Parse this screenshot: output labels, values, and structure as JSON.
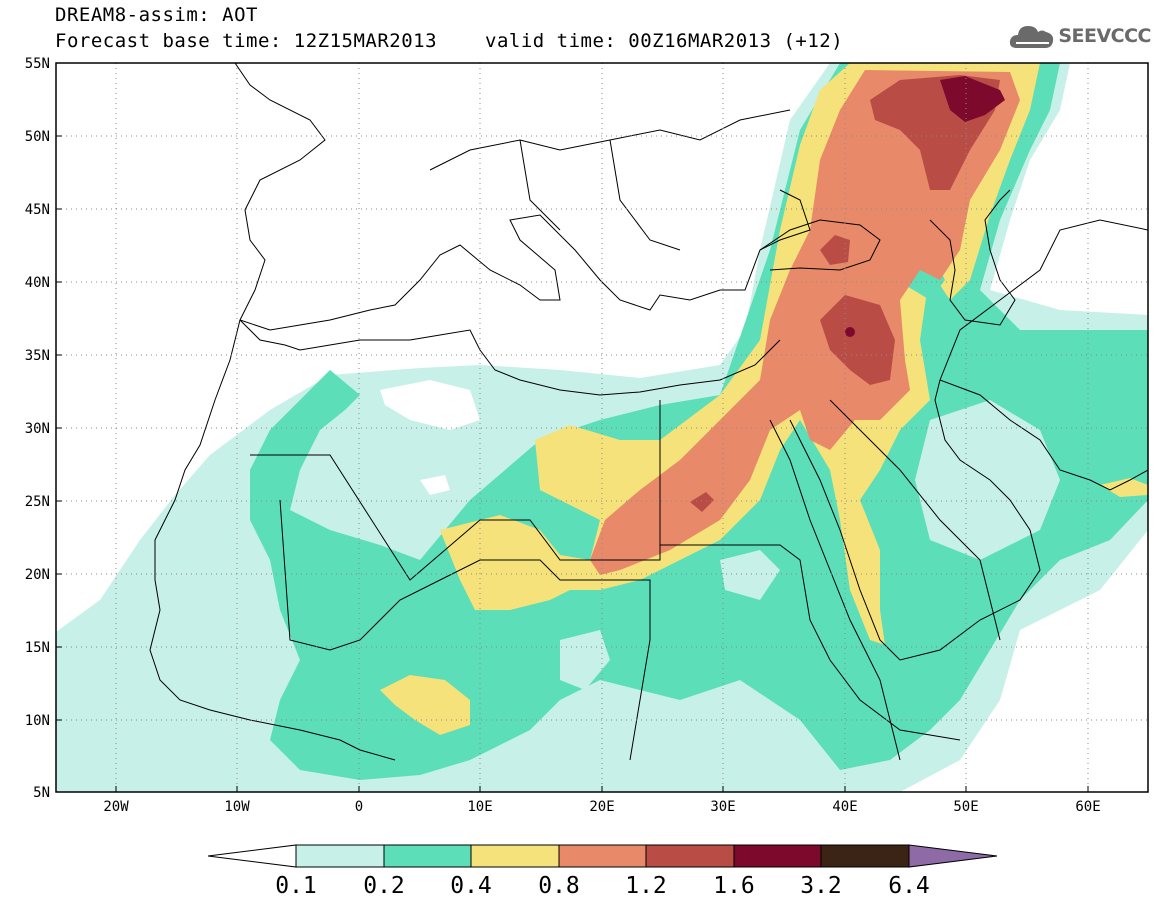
{
  "header": {
    "title": "DREAM8-assim: AOT",
    "base_time": "Forecast base time: 12Z15MAR2013",
    "valid_time": "valid time: 00Z16MAR2013 (+12)",
    "logo_text": "SEEVCCC",
    "logo_icon": "cloud-icon"
  },
  "map": {
    "lat_range": [
      5,
      55
    ],
    "lon_range": [
      -25,
      65
    ],
    "lat_labels": [
      "55N",
      "50N",
      "45N",
      "40N",
      "35N",
      "30N",
      "25N",
      "20N",
      "15N",
      "10N",
      "5N"
    ],
    "lon_labels": [
      "20W",
      "10W",
      "0",
      "10E",
      "20E",
      "30E",
      "40E",
      "50E",
      "60E"
    ],
    "grid": "dotted",
    "field": "Aerosol Optical Thickness"
  },
  "colorbar": {
    "labels": [
      "0.1",
      "0.2",
      "0.4",
      "0.8",
      "1.2",
      "1.6",
      "3.2",
      "6.4"
    ],
    "colors": [
      "#ffffff",
      "#c6f0e8",
      "#5cdeb8",
      "#f5e27a",
      "#e8896a",
      "#b94d46",
      "#7d0a2c",
      "#3b2415",
      "#8e6aa6"
    ]
  }
}
